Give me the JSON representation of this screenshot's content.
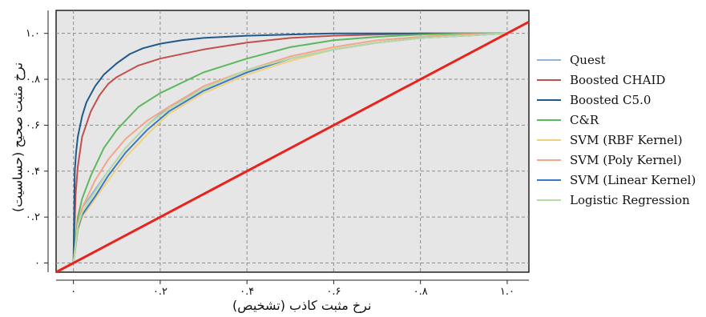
{
  "chart_data": {
    "type": "line",
    "xlabel": "نرخ مثبت کاذب (تشخیص)",
    "ylabel": "نرخ مثبت صحیح (حساسیت)",
    "xlim": [
      -0.04,
      1.05
    ],
    "ylim": [
      -0.04,
      1.1
    ],
    "x_ticks": [
      0,
      0.2,
      0.4,
      0.6,
      0.8,
      1.0
    ],
    "x_tick_labels": [
      "۰",
      "۰.۲",
      "۰.۴",
      "۰.۶",
      "۰.۸",
      "۱.۰"
    ],
    "y_ticks": [
      0,
      0.2,
      0.4,
      0.6,
      0.8,
      1.0
    ],
    "y_tick_labels": [
      "۰",
      "۰.۲",
      "۰.۴",
      "۰.۶",
      "۰.۸",
      "۱.۰"
    ],
    "grid": true,
    "legend_position": "right",
    "series": [
      {
        "name": "Quest",
        "color": "#8fb6d9",
        "x": [
          0,
          0.01,
          0.02,
          0.05,
          0.08,
          0.12,
          0.17,
          0.22,
          0.3,
          0.4,
          0.5,
          0.6,
          0.7,
          0.8,
          0.9,
          1.0
        ],
        "y": [
          0,
          0.18,
          0.24,
          0.32,
          0.4,
          0.5,
          0.6,
          0.68,
          0.76,
          0.84,
          0.89,
          0.93,
          0.96,
          0.98,
          0.99,
          1.0
        ]
      },
      {
        "name": "Boosted CHAID",
        "color": "#c0504d",
        "x": [
          0,
          0.005,
          0.01,
          0.02,
          0.04,
          0.06,
          0.08,
          0.1,
          0.15,
          0.2,
          0.3,
          0.4,
          0.5,
          0.6,
          0.8,
          1.0
        ],
        "y": [
          0,
          0.3,
          0.42,
          0.55,
          0.66,
          0.73,
          0.78,
          0.81,
          0.86,
          0.89,
          0.93,
          0.96,
          0.98,
          0.99,
          1.0,
          1.0
        ]
      },
      {
        "name": "Boosted C5.0",
        "color": "#1f5a8c",
        "x": [
          0,
          0.003,
          0.006,
          0.01,
          0.02,
          0.03,
          0.05,
          0.07,
          0.1,
          0.13,
          0.16,
          0.2,
          0.25,
          0.3,
          0.4,
          0.5,
          0.6,
          0.8,
          1.0
        ],
        "y": [
          0,
          0.4,
          0.48,
          0.55,
          0.64,
          0.7,
          0.77,
          0.82,
          0.87,
          0.91,
          0.935,
          0.955,
          0.97,
          0.98,
          0.99,
          0.995,
          1.0,
          1.0,
          1.0
        ]
      },
      {
        "name": "C&R",
        "color": "#5cb85c",
        "x": [
          0,
          0.01,
          0.02,
          0.04,
          0.07,
          0.1,
          0.15,
          0.2,
          0.3,
          0.4,
          0.5,
          0.6,
          0.7,
          0.8,
          0.9,
          1.0
        ],
        "y": [
          0,
          0.2,
          0.28,
          0.38,
          0.5,
          0.58,
          0.68,
          0.74,
          0.83,
          0.89,
          0.94,
          0.97,
          0.985,
          0.995,
          1.0,
          1.0
        ]
      },
      {
        "name": "SVM (RBF Kernel)",
        "color": "#f0d080",
        "x": [
          0,
          0.01,
          0.02,
          0.05,
          0.08,
          0.12,
          0.17,
          0.22,
          0.3,
          0.4,
          0.5,
          0.6,
          0.7,
          0.8,
          0.9,
          1.0
        ],
        "y": [
          0,
          0.14,
          0.2,
          0.28,
          0.36,
          0.46,
          0.56,
          0.65,
          0.74,
          0.82,
          0.88,
          0.93,
          0.96,
          0.98,
          0.995,
          1.0
        ]
      },
      {
        "name": "SVM (Poly Kernel)",
        "color": "#f4a58a",
        "x": [
          0,
          0.01,
          0.02,
          0.05,
          0.08,
          0.12,
          0.17,
          0.22,
          0.3,
          0.4,
          0.5,
          0.6,
          0.7,
          0.8,
          0.9,
          1.0
        ],
        "y": [
          0,
          0.17,
          0.24,
          0.36,
          0.45,
          0.54,
          0.62,
          0.68,
          0.77,
          0.84,
          0.9,
          0.94,
          0.97,
          0.985,
          0.995,
          1.0
        ]
      },
      {
        "name": "SVM (Linear Kernel)",
        "color": "#3a78c4",
        "x": [
          0,
          0.01,
          0.02,
          0.05,
          0.08,
          0.12,
          0.17,
          0.22,
          0.3,
          0.4,
          0.5,
          0.6,
          0.7,
          0.8,
          0.9,
          1.0
        ],
        "y": [
          0,
          0.15,
          0.21,
          0.29,
          0.38,
          0.48,
          0.58,
          0.66,
          0.75,
          0.83,
          0.89,
          0.93,
          0.96,
          0.98,
          0.99,
          1.0
        ]
      },
      {
        "name": "Logistic Regression",
        "color": "#b8dca4",
        "x": [
          0,
          0.01,
          0.02,
          0.05,
          0.08,
          0.12,
          0.17,
          0.22,
          0.3,
          0.4,
          0.5,
          0.6,
          0.7,
          0.8,
          0.9,
          1.0
        ],
        "y": [
          0,
          0.16,
          0.22,
          0.31,
          0.4,
          0.5,
          0.6,
          0.67,
          0.76,
          0.84,
          0.89,
          0.93,
          0.96,
          0.98,
          0.99,
          1.0
        ]
      }
    ],
    "reference_line": {
      "color": "#e8231e",
      "x": [
        -0.04,
        1.05
      ],
      "y": [
        -0.04,
        1.05
      ]
    }
  }
}
